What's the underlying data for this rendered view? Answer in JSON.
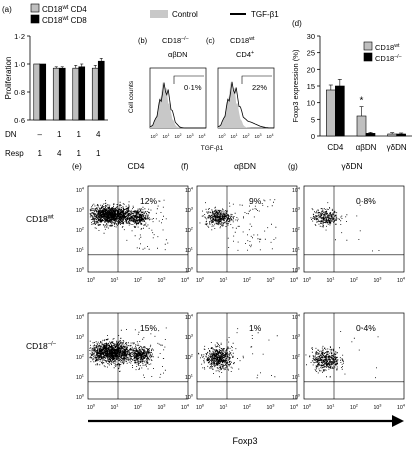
{
  "colors": {
    "wt": "#bfbfbf",
    "ko": "#000000",
    "dot": "#000000",
    "control_fill": "#c8c8c8"
  },
  "panel_a": {
    "label": "(a)",
    "legend": [
      {
        "text": "CD18",
        "sup": "wt",
        "rest": " CD4",
        "color": "#bfbfbf"
      },
      {
        "text": "CD18",
        "sup": "wt",
        "rest": " CD8",
        "color": "#000000"
      }
    ],
    "ylabel": "Proliferation",
    "yticks": [
      "1·2",
      "1·0",
      "0·8",
      "0·6"
    ],
    "row_labels": [
      "DN",
      "Resp"
    ],
    "dn_values": [
      "–",
      "1",
      "1",
      "4"
    ],
    "resp_values": [
      "1",
      "4",
      "1",
      "1"
    ],
    "chart_data": {
      "type": "bar",
      "categories": [
        "DN – / Resp 1",
        "DN 1 / Resp 4",
        "DN 1 / Resp 1",
        "DN 4 / Resp 1"
      ],
      "ylim": [
        0.6,
        1.2
      ],
      "series": [
        {
          "name": "CD18wt CD4",
          "values": [
            1.0,
            0.97,
            0.97,
            0.97
          ],
          "err": [
            0.0,
            0.01,
            0.02,
            0.02
          ]
        },
        {
          "name": "CD18wt CD8",
          "values": [
            1.0,
            0.97,
            0.98,
            1.02
          ],
          "err": [
            0.0,
            0.01,
            0.02,
            0.02
          ]
        }
      ]
    }
  },
  "panel_bc": {
    "legend_control": "Control",
    "legend_tgf": "TGF-β1",
    "ylabel": "Cell counts",
    "xlabel": "TGF-β1",
    "b": {
      "label": "(b)",
      "title1": "CD18",
      "title1_sup": "–/–",
      "title2": "αβDN",
      "pct": "0·1%"
    },
    "c": {
      "label": "(c)",
      "title1": "CD18",
      "title1_sup": "wt",
      "title2": "CD4",
      "title2_sup": "+",
      "pct": "22%"
    },
    "xtick_base": "10",
    "xtick_exps": [
      "0",
      "1",
      "2",
      "3",
      "4"
    ]
  },
  "panel_d": {
    "label": "(d)",
    "ylabel": "Foxp3 expression (%)",
    "yticks": [
      "0",
      "5",
      "10",
      "15",
      "20",
      "25",
      "30"
    ],
    "legend": [
      "CD18",
      "CD18"
    ],
    "legend_sups": [
      "wt",
      "–/–"
    ],
    "star": "*",
    "chart_data": {
      "type": "bar",
      "categories": [
        "CD4",
        "αβDN",
        "γδDN"
      ],
      "ylim": [
        0,
        30
      ],
      "series": [
        {
          "name": "CD18wt",
          "values": [
            13.8,
            6.0,
            0.6
          ],
          "err": [
            1.5,
            2.8,
            0.4
          ]
        },
        {
          "name": "CD18–/–",
          "values": [
            15.0,
            0.8,
            0.6
          ],
          "err": [
            2.0,
            0.3,
            0.3
          ]
        }
      ]
    }
  },
  "flow": {
    "columns": [
      {
        "label": "(e)",
        "title": "CD4"
      },
      {
        "label": "(f)",
        "title": "αβDN"
      },
      {
        "label": "(g)",
        "title": "γδDN"
      }
    ],
    "row_labels": [
      {
        "text": "CD18",
        "sup": "wt"
      },
      {
        "text": "CD18",
        "sup": "–/–"
      }
    ],
    "percentages": [
      [
        "12%",
        "9%",
        "0·8%"
      ],
      [
        "15%",
        "1%",
        "0·4%"
      ]
    ],
    "tick_base": "10",
    "tick_exps": [
      "0",
      "1",
      "2",
      "3",
      "4"
    ],
    "xaxis_label": "Foxp3"
  }
}
